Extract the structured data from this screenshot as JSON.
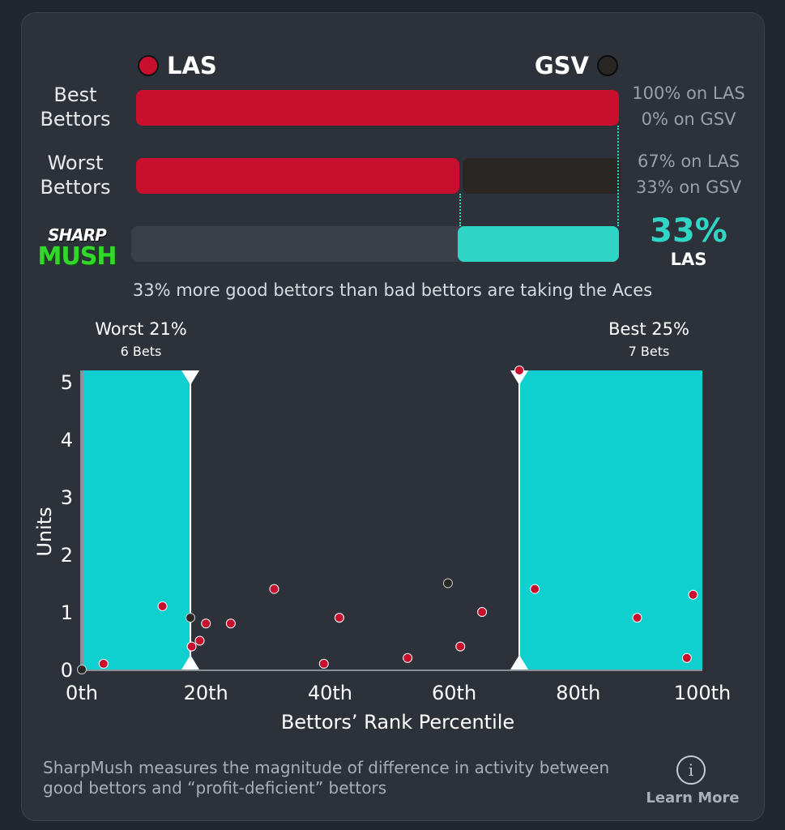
{
  "teams": {
    "a": {
      "code": "LAS",
      "color": "#c8102e"
    },
    "b": {
      "code": "GSV",
      "color": "#2a2623"
    }
  },
  "rows": {
    "best": {
      "label_line1": "Best",
      "label_line2": "Bettors",
      "pct_a": "100% on LAS",
      "pct_b": "0% on GSV",
      "share_a": 1.0
    },
    "worst": {
      "label_line1": "Worst",
      "label_line2": "Bettors",
      "pct_a": "67% on LAS",
      "pct_b": "33% on GSV",
      "share_a": 0.67
    },
    "sharp": {
      "logo_top": "SHARP",
      "logo_bottom": "MUSH",
      "value": "33%",
      "team": "LAS",
      "fill_share": 0.33
    }
  },
  "summary": "33% more good bettors than bad bettors are taking the Aces",
  "zones": {
    "worst": {
      "title": "Worst 21%",
      "sub": "6 Bets"
    },
    "best": {
      "title": "Best 25%",
      "sub": "7 Bets"
    }
  },
  "chart_data": {
    "type": "scatter",
    "xlabel": "Bettors’ Rank Percentile",
    "ylabel": "Units",
    "xlim": [
      0,
      100
    ],
    "ylim": [
      0,
      5.2
    ],
    "x_ticks": [
      0,
      20,
      40,
      60,
      80,
      100
    ],
    "x_tick_labels": [
      "0th",
      "20th",
      "40th",
      "60th",
      "80th",
      "100th"
    ],
    "y_ticks": [
      0,
      1,
      2,
      3,
      4,
      5
    ],
    "y_tick_labels": [
      "0",
      "1",
      "2",
      "3",
      "4",
      "5"
    ],
    "shaded_ranges": [
      [
        0,
        17.5
      ],
      [
        70.5,
        100
      ]
    ],
    "points": [
      {
        "x": 0,
        "y": 0,
        "team": "GSV"
      },
      {
        "x": 3.5,
        "y": 0.1,
        "team": "LAS"
      },
      {
        "x": 13,
        "y": 1.1,
        "team": "LAS"
      },
      {
        "x": 17.5,
        "y": 0.9,
        "team": "GSV"
      },
      {
        "x": 17.7,
        "y": 0.4,
        "team": "LAS"
      },
      {
        "x": 19,
        "y": 0.5,
        "team": "LAS"
      },
      {
        "x": 20,
        "y": 0.8,
        "team": "LAS"
      },
      {
        "x": 24,
        "y": 0.8,
        "team": "LAS"
      },
      {
        "x": 31,
        "y": 1.4,
        "team": "LAS"
      },
      {
        "x": 39,
        "y": 0.1,
        "team": "LAS"
      },
      {
        "x": 41.5,
        "y": 0.9,
        "team": "LAS"
      },
      {
        "x": 52.5,
        "y": 0.2,
        "team": "LAS"
      },
      {
        "x": 59,
        "y": 1.5,
        "team": "GSV"
      },
      {
        "x": 61,
        "y": 0.4,
        "team": "LAS"
      },
      {
        "x": 64.5,
        "y": 1.0,
        "team": "LAS"
      },
      {
        "x": 70.5,
        "y": 5.2,
        "team": "LAS"
      },
      {
        "x": 73,
        "y": 1.4,
        "team": "LAS"
      },
      {
        "x": 89.5,
        "y": 0.9,
        "team": "LAS"
      },
      {
        "x": 97.5,
        "y": 0.2,
        "team": "LAS"
      },
      {
        "x": 98.5,
        "y": 1.3,
        "team": "LAS"
      }
    ]
  },
  "footer": {
    "text": "SharpMush measures the magnitude of difference in activity between good bettors and “profit-deficient” bettors",
    "info_symbol": "i",
    "learn_more": "Learn More"
  },
  "colors": {
    "accent": "#2fd5c5",
    "zone_fill": "#0fcfcf",
    "track": "#3a3f49"
  }
}
